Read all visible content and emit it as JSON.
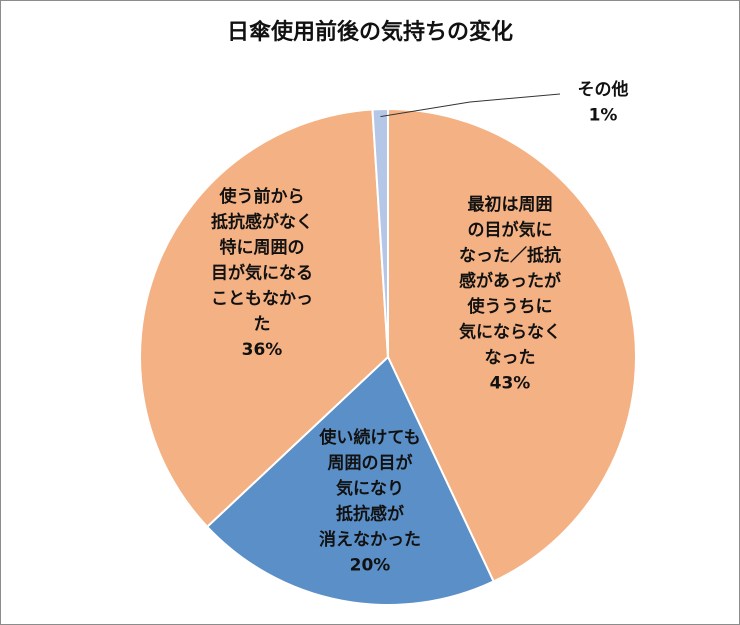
{
  "chart_data": {
    "type": "pie",
    "title": "日傘使用前後の気持ちの変化",
    "slices": [
      {
        "label_lines": [
          "最初は周囲",
          "の目が気に",
          "なった／抵抗",
          "感があったが",
          "使ううちに",
          "気にならなく",
          "なった"
        ],
        "value": 43,
        "value_label": "43%",
        "color": "#f4b183"
      },
      {
        "label_lines": [
          "使い続けても",
          "周囲の目が",
          "気になり",
          "抵抗感が",
          "消えなかった"
        ],
        "value": 20,
        "value_label": "20%",
        "color": "#5b8fc7"
      },
      {
        "label_lines": [
          "使う前から",
          "抵抗感がなく",
          "特に周囲の",
          "目が気になる",
          "こともなかっ",
          "た"
        ],
        "value": 36,
        "value_label": "36%",
        "color": "#f4b183"
      },
      {
        "label_lines": [
          "その他"
        ],
        "value": 1,
        "value_label": "1%",
        "color": "#b4c7e7"
      }
    ],
    "legend": "none"
  }
}
